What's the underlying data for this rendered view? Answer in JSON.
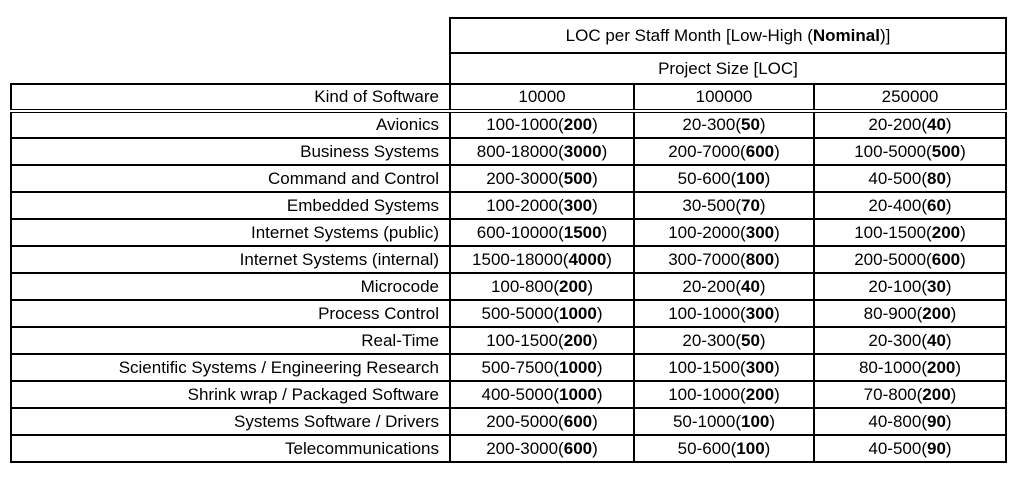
{
  "table": {
    "title": {
      "prefix": "LOC per Staff Month [Low-High (",
      "bold": "Nominal",
      "suffix": ")]"
    },
    "subtitle": "Project Size [LOC]",
    "row_header": "Kind of Software",
    "size_headers": [
      "10000",
      "100000",
      "250000"
    ],
    "rows": [
      {
        "kind": "Avionics",
        "cells": [
          {
            "prefix": "100-1000(",
            "nominal": "200",
            "suffix": ")"
          },
          {
            "prefix": "20-300(",
            "nominal": "50",
            "suffix": ")"
          },
          {
            "prefix": "20-200(",
            "nominal": "40",
            "suffix": ")"
          }
        ]
      },
      {
        "kind": "Business Systems",
        "cells": [
          {
            "prefix": "800-18000(",
            "nominal": "3000",
            "suffix": ")"
          },
          {
            "prefix": "200-7000(",
            "nominal": "600",
            "suffix": ")"
          },
          {
            "prefix": "100-5000(",
            "nominal": "500",
            "suffix": ")"
          }
        ]
      },
      {
        "kind": "Command and Control",
        "cells": [
          {
            "prefix": "200-3000(",
            "nominal": "500",
            "suffix": ")"
          },
          {
            "prefix": "50-600(",
            "nominal": "100",
            "suffix": ")"
          },
          {
            "prefix": "40-500(",
            "nominal": "80",
            "suffix": ")"
          }
        ]
      },
      {
        "kind": "Embedded Systems",
        "cells": [
          {
            "prefix": "100-2000(",
            "nominal": "300",
            "suffix": ")"
          },
          {
            "prefix": "30-500(",
            "nominal": "70",
            "suffix": ")"
          },
          {
            "prefix": "20-400(",
            "nominal": "60",
            "suffix": ")"
          }
        ]
      },
      {
        "kind": "Internet Systems (public)",
        "cells": [
          {
            "prefix": "600-10000(",
            "nominal": "1500",
            "suffix": ")"
          },
          {
            "prefix": "100-2000(",
            "nominal": "300",
            "suffix": ")"
          },
          {
            "prefix": "100-1500(",
            "nominal": "200",
            "suffix": ")"
          }
        ]
      },
      {
        "kind": "Internet Systems (internal)",
        "cells": [
          {
            "prefix": "1500-18000(",
            "nominal": "4000",
            "suffix": ")"
          },
          {
            "prefix": "300-7000(",
            "nominal": "800",
            "suffix": ")"
          },
          {
            "prefix": "200-5000(",
            "nominal": "600",
            "suffix": ")"
          }
        ]
      },
      {
        "kind": "Microcode",
        "cells": [
          {
            "prefix": "100-800(",
            "nominal": "200",
            "suffix": ")"
          },
          {
            "prefix": "20-200(",
            "nominal": "40",
            "suffix": ")"
          },
          {
            "prefix": "20-100(",
            "nominal": "30",
            "suffix": ")"
          }
        ]
      },
      {
        "kind": "Process Control",
        "cells": [
          {
            "prefix": "500-5000(",
            "nominal": "1000",
            "suffix": ")"
          },
          {
            "prefix": "100-1000(",
            "nominal": "300",
            "suffix": ")"
          },
          {
            "prefix": "80-900(",
            "nominal": "200",
            "suffix": ")"
          }
        ]
      },
      {
        "kind": "Real-Time",
        "cells": [
          {
            "prefix": "100-1500(",
            "nominal": "200",
            "suffix": ")"
          },
          {
            "prefix": "20-300(",
            "nominal": "50",
            "suffix": ")"
          },
          {
            "prefix": "20-300(",
            "nominal": "40",
            "suffix": ")"
          }
        ]
      },
      {
        "kind": "Scientific Systems / Engineering Research",
        "cells": [
          {
            "prefix": "500-7500(",
            "nominal": "1000",
            "suffix": ")"
          },
          {
            "prefix": "100-1500(",
            "nominal": "300",
            "suffix": ")"
          },
          {
            "prefix": "80-1000(",
            "nominal": "200",
            "suffix": ")"
          }
        ]
      },
      {
        "kind": "Shrink wrap / Packaged Software",
        "cells": [
          {
            "prefix": "400-5000(",
            "nominal": "1000",
            "suffix": ")"
          },
          {
            "prefix": "100-1000(",
            "nominal": "200",
            "suffix": ")"
          },
          {
            "prefix": "70-800(",
            "nominal": "200",
            "suffix": ")"
          }
        ]
      },
      {
        "kind": "Systems Software / Drivers",
        "cells": [
          {
            "prefix": "200-5000(",
            "nominal": "600",
            "suffix": ")"
          },
          {
            "prefix": "50-1000(",
            "nominal": "100",
            "suffix": ")"
          },
          {
            "prefix": "40-800(",
            "nominal": "90",
            "suffix": ")"
          }
        ]
      },
      {
        "kind": "Telecommunications",
        "cells": [
          {
            "prefix": "200-3000(",
            "nominal": "600",
            "suffix": ")"
          },
          {
            "prefix": "50-600(",
            "nominal": "100",
            "suffix": ")"
          },
          {
            "prefix": "40-500(",
            "nominal": "90",
            "suffix": ")"
          }
        ]
      }
    ]
  }
}
